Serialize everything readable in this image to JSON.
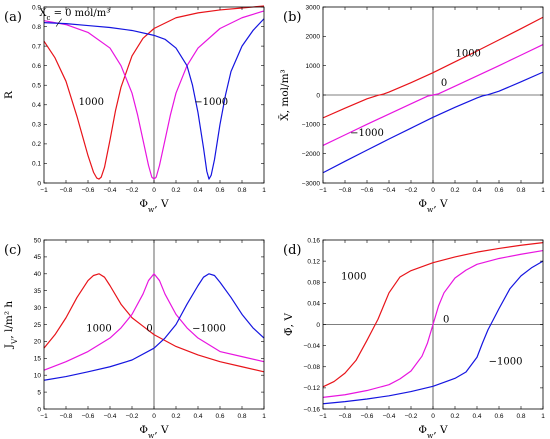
{
  "chart_data": [
    {
      "type": "line",
      "panel_label": "(a)",
      "xlabel": "Φ_w, V",
      "ylabel": "R",
      "xlim": [
        -1,
        1
      ],
      "ylim": [
        0,
        0.9
      ],
      "xticks": [
        -1,
        -0.8,
        -0.6,
        -0.4,
        -0.2,
        0,
        0.2,
        0.4,
        0.6,
        0.8,
        1
      ],
      "xtick_labels": [
        "−1",
        "−0.8",
        "−0.6",
        "−0.4",
        "−0.2",
        "0",
        "0.2",
        "0.4",
        "0.6",
        "0.8",
        "1"
      ],
      "yticks": [
        0,
        0.1,
        0.2,
        0.3,
        0.4,
        0.5,
        0.6,
        0.7,
        0.8,
        0.9
      ],
      "ytick_labels": [
        "0",
        "0.1",
        "0.2",
        "0.3",
        "0.4",
        "0.5",
        "0.6",
        "0.7",
        "0.8",
        "0.9"
      ],
      "grid": false,
      "annotations": [
        {
          "text": "X_c = 0 mol/m³",
          "x": -0.72,
          "y": 0.855
        },
        {
          "text": "1000",
          "x": -0.57,
          "y": 0.4
        },
        {
          "text": "−1000",
          "x": 0.52,
          "y": 0.4
        }
      ],
      "series": [
        {
          "color": "#e8141a",
          "x": [
            -1,
            -0.9,
            -0.8,
            -0.7,
            -0.65,
            -0.6,
            -0.55,
            -0.52,
            -0.5,
            -0.48,
            -0.45,
            -0.4,
            -0.35,
            -0.3,
            -0.2,
            -0.1,
            0,
            0.2,
            0.4,
            0.6,
            0.8,
            1
          ],
          "y": [
            0.725,
            0.64,
            0.52,
            0.34,
            0.24,
            0.14,
            0.055,
            0.025,
            0.02,
            0.03,
            0.08,
            0.22,
            0.37,
            0.49,
            0.65,
            0.74,
            0.79,
            0.845,
            0.87,
            0.885,
            0.895,
            0.905
          ]
        },
        {
          "color": "#e815e0",
          "x": [
            -1,
            -0.8,
            -0.6,
            -0.4,
            -0.3,
            -0.2,
            -0.15,
            -0.1,
            -0.05,
            -0.02,
            0,
            0.02,
            0.05,
            0.1,
            0.15,
            0.2,
            0.3,
            0.4,
            0.6,
            0.8,
            1
          ],
          "y": [
            0.83,
            0.81,
            0.77,
            0.69,
            0.6,
            0.46,
            0.35,
            0.22,
            0.09,
            0.03,
            0.02,
            0.03,
            0.09,
            0.22,
            0.35,
            0.46,
            0.6,
            0.69,
            0.79,
            0.845,
            0.88
          ]
        },
        {
          "color": "#1515e0",
          "x": [
            -1,
            -0.8,
            -0.6,
            -0.4,
            -0.2,
            0,
            0.1,
            0.2,
            0.3,
            0.35,
            0.4,
            0.45,
            0.48,
            0.5,
            0.52,
            0.55,
            0.6,
            0.65,
            0.7,
            0.8,
            0.9,
            1
          ],
          "y": [
            0.82,
            0.815,
            0.805,
            0.795,
            0.78,
            0.755,
            0.735,
            0.69,
            0.6,
            0.5,
            0.36,
            0.18,
            0.06,
            0.02,
            0.04,
            0.12,
            0.3,
            0.45,
            0.57,
            0.7,
            0.78,
            0.84
          ]
        }
      ]
    },
    {
      "type": "line",
      "panel_label": "(b)",
      "xlabel": "Φ_w, V",
      "ylabel": "X̄, mol/m³",
      "xlim": [
        -1,
        1
      ],
      "ylim": [
        -3000,
        3000
      ],
      "xticks": [
        -1,
        -0.8,
        -0.6,
        -0.4,
        -0.2,
        0,
        0.2,
        0.4,
        0.6,
        0.8,
        1
      ],
      "xtick_labels": [
        "−1",
        "−0.8",
        "−0.6",
        "−0.4",
        "−0.2",
        "0",
        "0.2",
        "0.4",
        "0.6",
        "0.8",
        "1"
      ],
      "yticks": [
        -3000,
        -2000,
        -1000,
        0,
        1000,
        2000,
        3000
      ],
      "ytick_labels": [
        "−3000",
        "−2000",
        "−1000",
        "0",
        "1000",
        "2000",
        "3000"
      ],
      "grid": false,
      "reference_lines": {
        "x0": true,
        "y0": true
      },
      "annotations": [
        {
          "text": "1000",
          "x": 0.32,
          "y": 1320
        },
        {
          "text": "0",
          "x": 0.1,
          "y": 300
        },
        {
          "text": "−1000",
          "x": -0.6,
          "y": -1400
        }
      ],
      "series": [
        {
          "color": "#e8141a",
          "x": [
            -1,
            -0.8,
            -0.6,
            -0.5,
            -0.45,
            -0.4,
            -0.2,
            0,
            0.2,
            0.4,
            0.6,
            0.8,
            1
          ],
          "y": [
            -780,
            -450,
            -130,
            -10,
            30,
            100,
            420,
            760,
            1130,
            1500,
            1880,
            2260,
            2650
          ]
        },
        {
          "color": "#e815e0",
          "x": [
            -1,
            -0.8,
            -0.6,
            -0.4,
            -0.2,
            -0.05,
            0,
            0.05,
            0.2,
            0.4,
            0.6,
            0.8,
            1
          ],
          "y": [
            -1720,
            -1360,
            -1000,
            -650,
            -300,
            -40,
            0,
            40,
            300,
            650,
            1000,
            1360,
            1720
          ]
        },
        {
          "color": "#1515e0",
          "x": [
            -1,
            -0.8,
            -0.6,
            -0.4,
            -0.2,
            0,
            0.2,
            0.4,
            0.45,
            0.5,
            0.6,
            0.8,
            1
          ],
          "y": [
            -2650,
            -2260,
            -1880,
            -1500,
            -1130,
            -760,
            -420,
            -100,
            -30,
            10,
            130,
            450,
            780
          ]
        }
      ]
    },
    {
      "type": "line",
      "panel_label": "(c)",
      "xlabel": "Φ_w, V",
      "ylabel": "J_V, l/m² h",
      "xlim": [
        -1,
        1
      ],
      "ylim": [
        0,
        50
      ],
      "xticks": [
        -1,
        -0.8,
        -0.6,
        -0.4,
        -0.2,
        0,
        0.2,
        0.4,
        0.6,
        0.8,
        1
      ],
      "xtick_labels": [
        "−1",
        "−0.8",
        "−0.6",
        "−0.4",
        "−0.2",
        "0",
        "0.2",
        "0.4",
        "0.6",
        "0.8",
        "1"
      ],
      "yticks": [
        0,
        5,
        10,
        15,
        20,
        25,
        30,
        35,
        40,
        45,
        50
      ],
      "ytick_labels": [
        "0",
        "5",
        "10",
        "15",
        "20",
        "25",
        "30",
        "35",
        "40",
        "45",
        "50"
      ],
      "grid": false,
      "annotations": [
        {
          "text": "1000",
          "x": -0.5,
          "y": 23
        },
        {
          "text": "0",
          "x": -0.04,
          "y": 23
        },
        {
          "text": "−1000",
          "x": 0.5,
          "y": 23
        }
      ],
      "series": [
        {
          "color": "#e8141a",
          "x": [
            -1,
            -0.9,
            -0.8,
            -0.7,
            -0.6,
            -0.55,
            -0.5,
            -0.45,
            -0.4,
            -0.3,
            -0.2,
            -0.1,
            0,
            0.2,
            0.4,
            0.6,
            0.8,
            1
          ],
          "y": [
            18,
            22,
            27,
            33,
            38,
            39.5,
            40,
            39,
            36.5,
            31,
            27,
            24.5,
            22,
            18.5,
            16,
            14,
            12.5,
            11
          ]
        },
        {
          "color": "#e815e0",
          "x": [
            -1,
            -0.8,
            -0.6,
            -0.4,
            -0.3,
            -0.2,
            -0.1,
            -0.05,
            0,
            0.05,
            0.1,
            0.2,
            0.3,
            0.4,
            0.6,
            0.8,
            1
          ],
          "y": [
            11.5,
            14,
            17,
            21,
            24,
            28,
            34,
            38,
            40,
            38,
            34,
            28,
            24,
            21,
            17,
            15.5,
            14
          ]
        },
        {
          "color": "#1515e0",
          "x": [
            -1,
            -0.8,
            -0.6,
            -0.4,
            -0.2,
            0,
            0.1,
            0.2,
            0.3,
            0.4,
            0.45,
            0.5,
            0.55,
            0.6,
            0.7,
            0.8,
            0.9,
            1
          ],
          "y": [
            8.5,
            9.6,
            11,
            12.5,
            14.5,
            18,
            21,
            25,
            31,
            36.5,
            39,
            40,
            39.5,
            37.5,
            33,
            28,
            24,
            21
          ]
        }
      ]
    },
    {
      "type": "line",
      "panel_label": "(d)",
      "xlabel": "Φ_w, V",
      "ylabel": "Φ̄, V",
      "xlim": [
        -1,
        1
      ],
      "ylim": [
        -0.16,
        0.16
      ],
      "xticks": [
        -1,
        -0.8,
        -0.6,
        -0.4,
        -0.2,
        0,
        0.2,
        0.4,
        0.6,
        0.8,
        1
      ],
      "xtick_labels": [
        "−1",
        "−0.8",
        "−0.6",
        "−0.4",
        "−0.2",
        "0",
        "0.2",
        "0.4",
        "0.6",
        "0.8",
        "1"
      ],
      "yticks": [
        -0.16,
        -0.12,
        -0.08,
        -0.04,
        0,
        0.04,
        0.08,
        0.12,
        0.16
      ],
      "ytick_labels": [
        "−0.16",
        "−0.12",
        "−0.08",
        "−0.04",
        "0",
        "0.04",
        "0.08",
        "0.12",
        "0.16"
      ],
      "grid": false,
      "reference_lines": {
        "x0": true,
        "y0": true
      },
      "annotations": [
        {
          "text": "1000",
          "x": -0.72,
          "y": 0.085
        },
        {
          "text": "0",
          "x": 0.12,
          "y": 0.004
        },
        {
          "text": "−1000",
          "x": 0.66,
          "y": -0.076
        }
      ],
      "series": [
        {
          "color": "#e8141a",
          "x": [
            -1,
            -0.9,
            -0.8,
            -0.7,
            -0.6,
            -0.55,
            -0.5,
            -0.45,
            -0.4,
            -0.3,
            -0.2,
            0,
            0.2,
            0.4,
            0.6,
            0.8,
            1
          ],
          "y": [
            -0.118,
            -0.108,
            -0.092,
            -0.068,
            -0.03,
            -0.01,
            0.01,
            0.035,
            0.06,
            0.09,
            0.102,
            0.117,
            0.128,
            0.137,
            0.144,
            0.15,
            0.155
          ]
        },
        {
          "color": "#e815e0",
          "x": [
            -1,
            -0.8,
            -0.6,
            -0.4,
            -0.3,
            -0.2,
            -0.1,
            -0.05,
            0,
            0.05,
            0.1,
            0.2,
            0.3,
            0.4,
            0.6,
            0.8,
            1
          ],
          "y": [
            -0.138,
            -0.133,
            -0.125,
            -0.114,
            -0.103,
            -0.088,
            -0.06,
            -0.035,
            0,
            0.035,
            0.06,
            0.088,
            0.103,
            0.114,
            0.125,
            0.133,
            0.14
          ]
        },
        {
          "color": "#1515e0",
          "x": [
            -1,
            -0.8,
            -0.6,
            -0.4,
            -0.2,
            0,
            0.2,
            0.3,
            0.4,
            0.45,
            0.5,
            0.55,
            0.6,
            0.7,
            0.8,
            0.9,
            1
          ],
          "y": [
            -0.15,
            -0.146,
            -0.141,
            -0.135,
            -0.127,
            -0.117,
            -0.102,
            -0.09,
            -0.062,
            -0.035,
            -0.01,
            0.01,
            0.03,
            0.068,
            0.092,
            0.108,
            0.12
          ]
        }
      ]
    }
  ]
}
